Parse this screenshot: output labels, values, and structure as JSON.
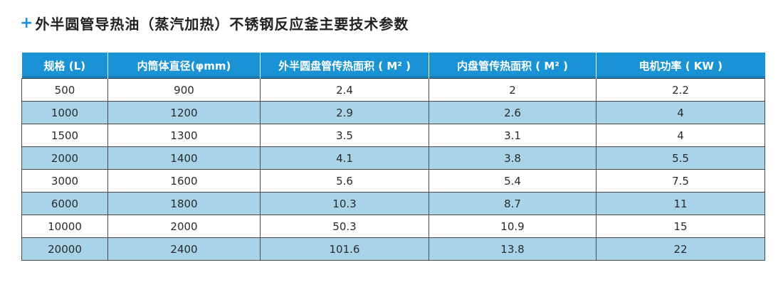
{
  "title": {
    "plus": "+",
    "text": "外半圆管导热油（蒸汽加热）不锈钢反应釜主要技术参数"
  },
  "table": {
    "headers": [
      "规格 (L)",
      "内筒体直径(φmm)",
      "外半圆盘管传热面积 ( M² )",
      "内盘管传热面积 ( M² )",
      "电机功率 ( KW )"
    ],
    "rows": [
      [
        "500",
        "900",
        "2.4",
        "2",
        "2.2"
      ],
      [
        "1000",
        "1200",
        "2.9",
        "2.6",
        "4"
      ],
      [
        "1500",
        "1300",
        "3.5",
        "3.1",
        "4"
      ],
      [
        "2000",
        "1400",
        "4.1",
        "3.8",
        "5.5"
      ],
      [
        "3000",
        "1600",
        "5.6",
        "5.4",
        "7.5"
      ],
      [
        "6000",
        "1800",
        "10.3",
        "8.7",
        "11"
      ],
      [
        "10000",
        "2000",
        "50.3",
        "10.9",
        "15"
      ],
      [
        "20000",
        "2400",
        "101.6",
        "13.8",
        "22"
      ]
    ]
  },
  "colors": {
    "header_bg": "#1a93d6",
    "stripe_bg": "#a9d3e9",
    "accent_plus": "#1a8fd8"
  }
}
